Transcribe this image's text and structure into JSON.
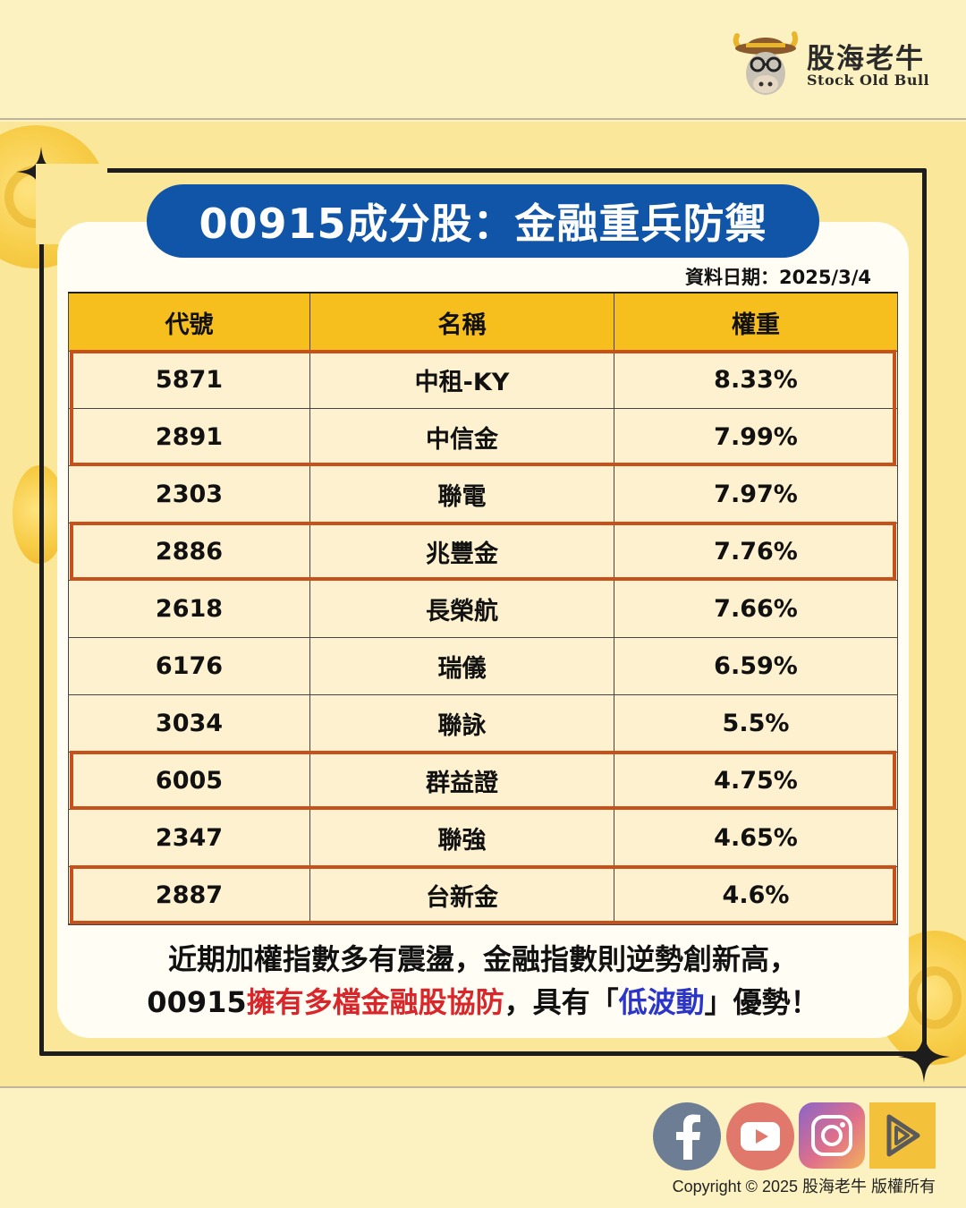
{
  "brand": {
    "name_zh": "股海老牛",
    "name_en": "Stock Old Bull"
  },
  "title": "00915成分股：金融重兵防禦",
  "date_label": "資料日期：2025/3/4",
  "table": {
    "headers": [
      "代號",
      "名稱",
      "權重"
    ],
    "rows": [
      {
        "code": "5871",
        "name": "中租-KY",
        "weight": "8.33%",
        "highlight": true
      },
      {
        "code": "2891",
        "name": "中信金",
        "weight": "7.99%",
        "highlight": true
      },
      {
        "code": "2303",
        "name": "聯電",
        "weight": "7.97%",
        "highlight": false
      },
      {
        "code": "2886",
        "name": "兆豐金",
        "weight": "7.76%",
        "highlight": true
      },
      {
        "code": "2618",
        "name": "長榮航",
        "weight": "7.66%",
        "highlight": false
      },
      {
        "code": "6176",
        "name": "瑞儀",
        "weight": "6.59%",
        "highlight": false
      },
      {
        "code": "3034",
        "name": "聯詠",
        "weight": "5.5%",
        "highlight": false
      },
      {
        "code": "6005",
        "name": "群益證",
        "weight": "4.75%",
        "highlight": true
      },
      {
        "code": "2347",
        "name": "聯強",
        "weight": "4.65%",
        "highlight": false
      },
      {
        "code": "2887",
        "name": "台新金",
        "weight": "4.6%",
        "highlight": true
      }
    ]
  },
  "summary": {
    "line1": "近期加權指數多有震盪，金融指數則逆勢創新高，",
    "line2_a": "00915",
    "line2_red": "擁有多檔金融股協防",
    "line2_b": "，具有「",
    "line2_blue": "低波動",
    "line2_c": "」優勢！"
  },
  "social": [
    "facebook-icon",
    "youtube-icon",
    "instagram-icon",
    "podcast-icon"
  ],
  "copyright": "Copyright © 2025 股海老牛 版權所有",
  "colors": {
    "title_bg": "#1155a8",
    "header_bg": "#f7bf1e",
    "row_bg": "#fdf1d0",
    "highlight_border": "#c8501a",
    "emphasis_red": "#d8262a",
    "emphasis_blue": "#2b36c9"
  }
}
